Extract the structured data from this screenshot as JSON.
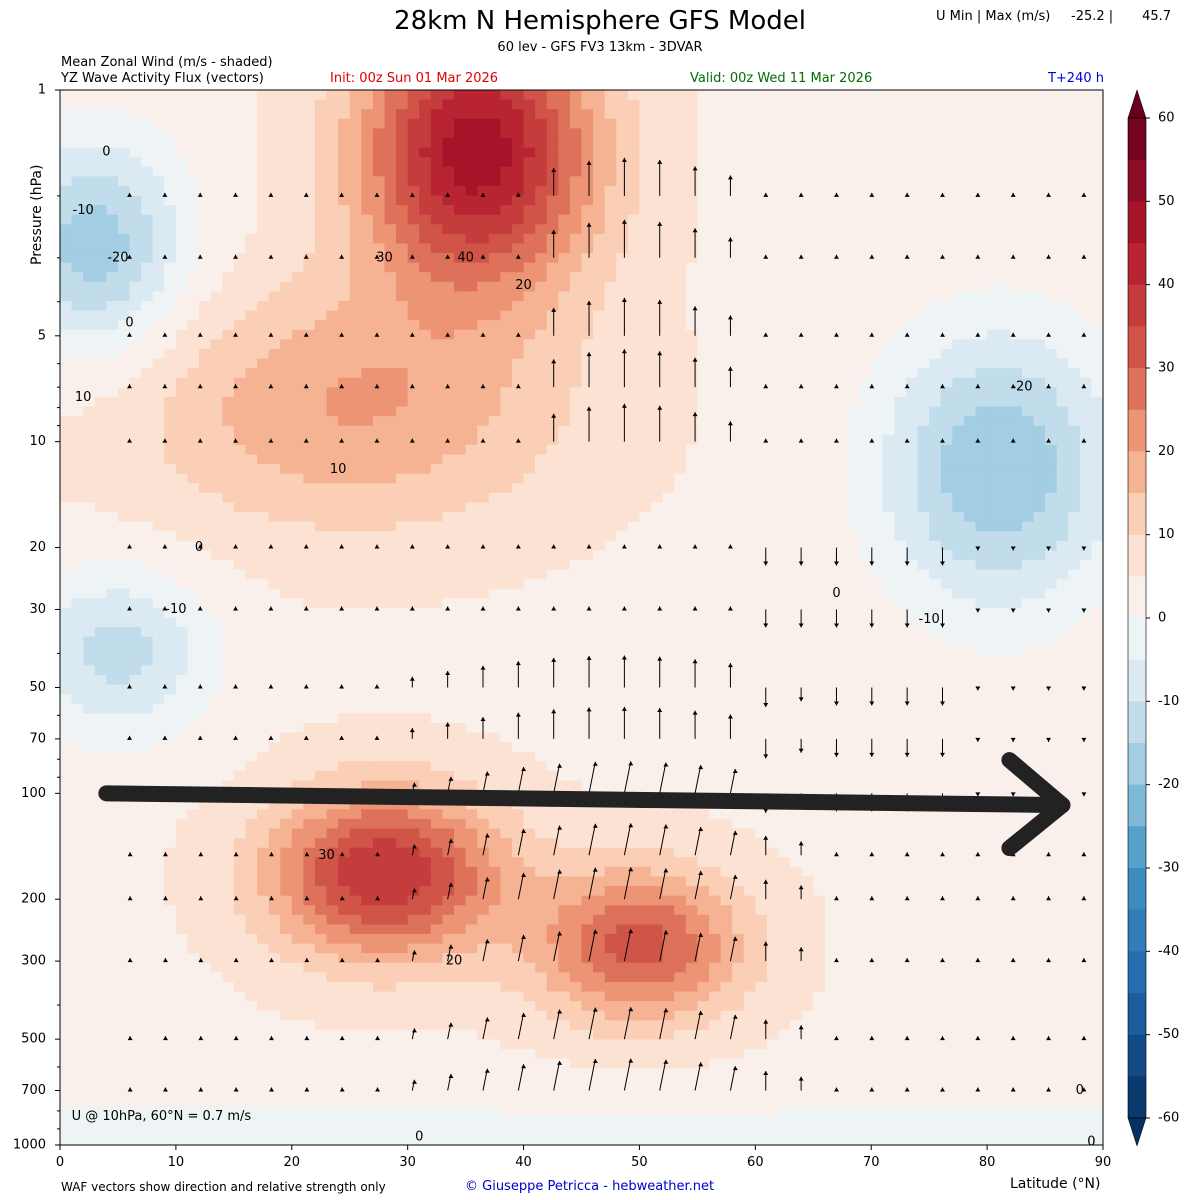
{
  "header": {
    "title": "28km N Hemisphere GFS Model",
    "subtitle": "60 lev - GFS FV3 13km - 3DVAR",
    "stats_label": "U Min | Max (m/s)",
    "stats_min": "-25.2 |",
    "stats_max": "45.7",
    "shade_label": "Mean Zonal Wind (m/s - shaded)",
    "vector_label": "YZ Wave Activity Flux (vectors)",
    "init": "Init: 00z Sun 01 Mar 2026",
    "valid": "Valid: 00z Wed 11 Mar 2026",
    "lead": "T+240 h"
  },
  "footer": {
    "note": "WAF vectors show direction and relative strength only",
    "credit": "© Giuseppe Petricca - hebweather.net"
  },
  "colors": {
    "neg_strong": "#053061",
    "neg_mid": "#4393c3",
    "neg_light": "#d1e5f0",
    "near_zero": "#f7f7f7",
    "pos_light": "#fddbc7",
    "pos_mid": "#d6604d",
    "pos_strong": "#67001f",
    "arrow_overlay": "#222222"
  },
  "chart_data": {
    "type": "heatmap",
    "variable": "Mean Zonal Wind (m/s)",
    "xlabel": "Latitude (°N)",
    "ylabel": "Pressure (hPa)",
    "xlim": [
      0,
      90
    ],
    "ylim": [
      1000,
      1
    ],
    "yscale": "log",
    "x_ticks": [
      0,
      10,
      20,
      30,
      40,
      50,
      60,
      70,
      80,
      90
    ],
    "y_ticks": [
      1,
      5,
      10,
      20,
      30,
      50,
      70,
      100,
      200,
      300,
      500,
      700,
      1000
    ],
    "colorbar": {
      "levels": [
        -60,
        -55,
        -50,
        -45,
        -40,
        -35,
        -30,
        -25,
        -20,
        -15,
        -10,
        -5,
        0,
        5,
        10,
        15,
        20,
        25,
        30,
        35,
        40,
        45,
        50,
        55,
        60
      ],
      "tick_labels": [
        60,
        50,
        40,
        30,
        20,
        10,
        0,
        -10,
        -20,
        -30,
        -40,
        -50,
        -60
      ]
    },
    "features": [
      {
        "name": "stratospheric jet max",
        "lat": 36,
        "p": 1.5,
        "value": 44
      },
      {
        "name": "subtropical easterlies upper",
        "lat": 3,
        "p": 2.8,
        "value": -22
      },
      {
        "name": "subtropical easterlies mid",
        "lat": 5,
        "p": 40,
        "value": -16
      },
      {
        "name": "polar easterlies",
        "lat": 81,
        "p": 12,
        "value": -24
      },
      {
        "name": "subtropical tropospheric jet",
        "lat": 28,
        "p": 170,
        "value": 36
      },
      {
        "name": "midlatitude jet branch",
        "lat": 50,
        "p": 270,
        "value": 28
      },
      {
        "name": "mid-stratosphere westerly",
        "lat": 25,
        "p": 8,
        "value": 16
      }
    ],
    "contour_labels": [
      {
        "text": "0",
        "lat": 4,
        "p": 1.5
      },
      {
        "text": "-10",
        "lat": 2,
        "p": 2.2
      },
      {
        "text": "-20",
        "lat": 5,
        "p": 3
      },
      {
        "text": "0",
        "lat": 6,
        "p": 4.6
      },
      {
        "text": "10",
        "lat": 2,
        "p": 7.5
      },
      {
        "text": "30",
        "lat": 28,
        "p": 3
      },
      {
        "text": "40",
        "lat": 35,
        "p": 3
      },
      {
        "text": "20",
        "lat": 40,
        "p": 3.6
      },
      {
        "text": "10",
        "lat": 24,
        "p": 12
      },
      {
        "text": "0",
        "lat": 12,
        "p": 20
      },
      {
        "text": "-10",
        "lat": 10,
        "p": 30
      },
      {
        "text": "-20",
        "lat": 83,
        "p": 7
      },
      {
        "text": "0",
        "lat": 67,
        "p": 27
      },
      {
        "text": "-10",
        "lat": 75,
        "p": 32
      },
      {
        "text": "30",
        "lat": 23,
        "p": 150
      },
      {
        "text": "20",
        "lat": 34,
        "p": 300
      },
      {
        "text": "0",
        "lat": 31,
        "p": 950
      },
      {
        "text": "0",
        "lat": 88,
        "p": 700
      },
      {
        "text": "0",
        "lat": 89,
        "p": 980
      }
    ],
    "annotation": "U @ 10hPa, 60°N =  0.7 m/s",
    "overlay": "large dark arrow pointing right along ~100 hPa"
  }
}
